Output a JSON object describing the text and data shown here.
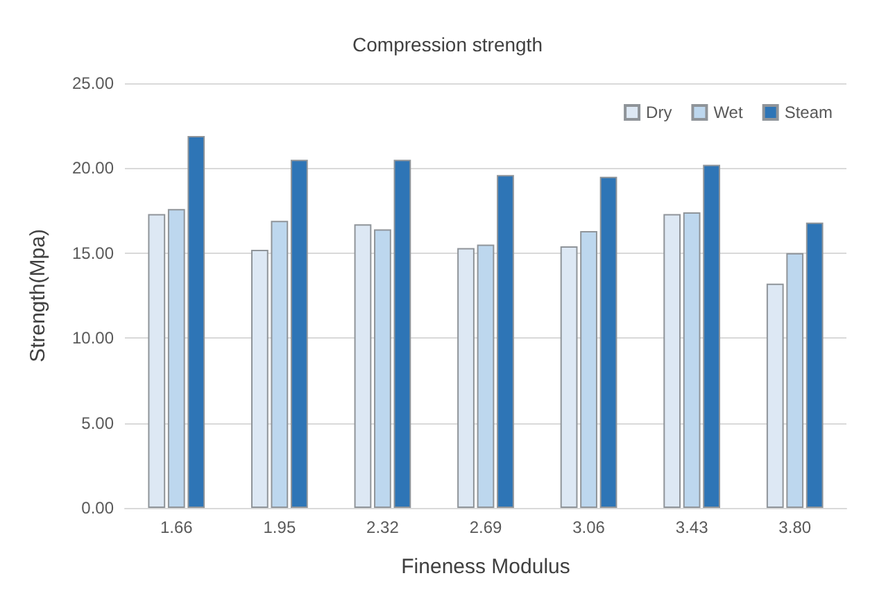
{
  "chart_data": {
    "type": "bar",
    "title": "Compression strength",
    "xlabel": "Fineness Modulus",
    "ylabel": "Strength(Mpa)",
    "categories": [
      "1.66",
      "1.95",
      "2.32",
      "2.69",
      "3.06",
      "3.43",
      "3.80"
    ],
    "series": [
      {
        "name": "Dry",
        "color": "#dde8f4",
        "values": [
          17.3,
          15.2,
          16.7,
          15.3,
          15.4,
          17.3,
          13.2
        ]
      },
      {
        "name": "Wet",
        "color": "#bdd7ee",
        "values": [
          17.6,
          16.9,
          16.4,
          15.5,
          16.3,
          17.4,
          15.0
        ]
      },
      {
        "name": "Steam",
        "color": "#2e75b6",
        "values": [
          21.9,
          20.5,
          20.5,
          19.6,
          19.5,
          20.2,
          16.8
        ]
      }
    ],
    "ylim": [
      0,
      25
    ],
    "yticks": [
      {
        "value": 0,
        "label": "0.00"
      },
      {
        "value": 5,
        "label": "5.00"
      },
      {
        "value": 10,
        "label": "10.00"
      },
      {
        "value": 15,
        "label": "15.00"
      },
      {
        "value": 20,
        "label": "20.00"
      },
      {
        "value": 25,
        "label": "25.00"
      }
    ],
    "grid": "y",
    "legend": "top right"
  }
}
